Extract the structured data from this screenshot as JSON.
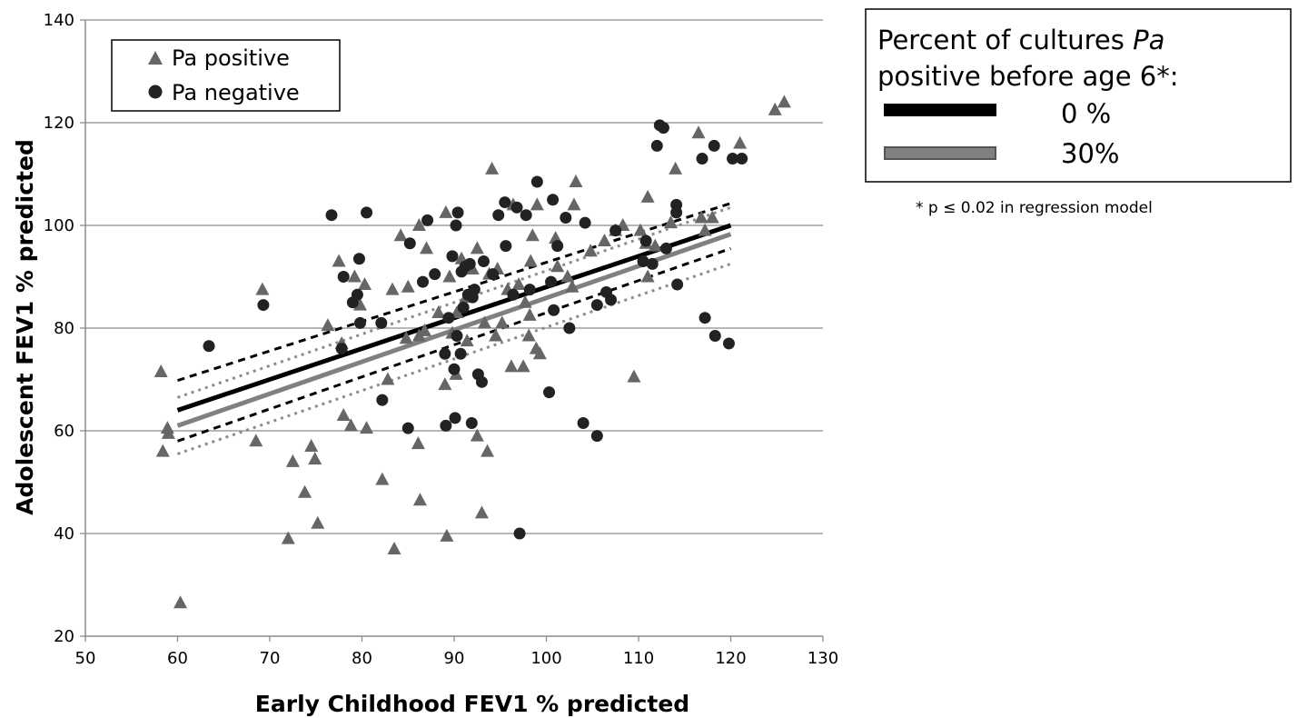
{
  "chart_data": {
    "type": "scatter",
    "xlabel": "Early Childhood FEV1 % predicted",
    "ylabel": "Adolescent FEV1 % predicted",
    "xlim": [
      50,
      130
    ],
    "ylim": [
      20,
      140
    ],
    "xticks": [
      50,
      60,
      70,
      80,
      90,
      100,
      110,
      120,
      130
    ],
    "yticks": [
      20,
      40,
      60,
      80,
      100,
      120,
      140
    ],
    "grid": "horizontal",
    "legend_placement": "top-left",
    "series": [
      {
        "name": "Pa positive",
        "marker": "triangle",
        "color": "#666666",
        "points": [
          [
            58.2,
            71.5
          ],
          [
            58.4,
            56
          ],
          [
            58.9,
            60.5
          ],
          [
            59,
            59.5
          ],
          [
            60.3,
            26.5
          ],
          [
            68.5,
            58
          ],
          [
            69.2,
            87.5
          ],
          [
            72,
            39
          ],
          [
            72.5,
            54
          ],
          [
            73.8,
            48
          ],
          [
            74.5,
            57
          ],
          [
            74.9,
            54.5
          ],
          [
            75.2,
            42
          ],
          [
            76.3,
            80.5
          ],
          [
            77.5,
            93
          ],
          [
            77.8,
            77
          ],
          [
            78,
            63
          ],
          [
            78.8,
            61
          ],
          [
            79.2,
            90
          ],
          [
            79.8,
            84.5
          ],
          [
            80.3,
            88.5
          ],
          [
            80.5,
            60.5
          ],
          [
            82.2,
            50.5
          ],
          [
            82.8,
            70
          ],
          [
            83.3,
            87.5
          ],
          [
            83.5,
            37
          ],
          [
            84.2,
            98
          ],
          [
            84.8,
            78
          ],
          [
            85,
            88
          ],
          [
            86.1,
            57.5
          ],
          [
            86.2,
            100
          ],
          [
            86.2,
            78.5
          ],
          [
            86.3,
            46.5
          ],
          [
            86.8,
            79.5
          ],
          [
            87,
            95.5
          ],
          [
            88.3,
            83
          ],
          [
            89,
            69
          ],
          [
            89.1,
            102.5
          ],
          [
            89.2,
            39.5
          ],
          [
            89.5,
            90
          ],
          [
            89.8,
            79
          ],
          [
            90.2,
            71
          ],
          [
            90.3,
            83
          ],
          [
            90.8,
            93.5
          ],
          [
            91.3,
            86
          ],
          [
            91.4,
            77.5
          ],
          [
            92,
            91.5
          ],
          [
            92.5,
            59
          ],
          [
            92.5,
            95.5
          ],
          [
            93,
            44
          ],
          [
            93.3,
            81
          ],
          [
            93.6,
            56
          ],
          [
            93.8,
            90.5
          ],
          [
            94.1,
            111
          ],
          [
            94.5,
            78.5
          ],
          [
            94.7,
            91.5
          ],
          [
            95.2,
            81
          ],
          [
            95.8,
            87.5
          ],
          [
            96.2,
            72.5
          ],
          [
            96.4,
            104
          ],
          [
            97,
            88.5
          ],
          [
            97.5,
            72.5
          ],
          [
            97.7,
            85
          ],
          [
            98.1,
            78.5
          ],
          [
            98.2,
            82.5
          ],
          [
            98.3,
            93
          ],
          [
            98.5,
            98
          ],
          [
            98.9,
            76
          ],
          [
            99,
            104
          ],
          [
            99.3,
            75
          ],
          [
            101,
            97.5
          ],
          [
            101.2,
            92
          ],
          [
            102.3,
            90
          ],
          [
            102.8,
            88
          ],
          [
            103,
            104
          ],
          [
            103.2,
            108.5
          ],
          [
            104.8,
            95
          ],
          [
            106.3,
            97
          ],
          [
            107.5,
            99
          ],
          [
            108.3,
            100
          ],
          [
            109.5,
            70.5
          ],
          [
            110.2,
            99
          ],
          [
            110.8,
            96.5
          ],
          [
            111,
            90
          ],
          [
            111,
            105.5
          ],
          [
            111.8,
            96
          ],
          [
            113.5,
            100.5
          ],
          [
            114,
            111
          ],
          [
            116.5,
            118
          ],
          [
            116.8,
            101.5
          ],
          [
            117.2,
            99
          ],
          [
            118,
            101.5
          ],
          [
            121,
            116
          ],
          [
            124.8,
            122.5
          ],
          [
            125.8,
            124
          ]
        ]
      },
      {
        "name": "Pa negative",
        "marker": "circle",
        "color": "#222222",
        "points": [
          [
            63.4,
            76.5
          ],
          [
            69.3,
            84.5
          ],
          [
            76.7,
            102
          ],
          [
            77.8,
            76
          ],
          [
            78,
            90
          ],
          [
            79,
            85
          ],
          [
            79.5,
            86.5
          ],
          [
            79.7,
            93.5
          ],
          [
            79.8,
            81
          ],
          [
            80.5,
            102.5
          ],
          [
            82.1,
            81
          ],
          [
            82.2,
            66
          ],
          [
            85,
            60.5
          ],
          [
            85.2,
            96.5
          ],
          [
            86.6,
            89
          ],
          [
            87.1,
            101
          ],
          [
            87.9,
            90.5
          ],
          [
            89,
            75
          ],
          [
            89.1,
            61
          ],
          [
            89.4,
            82
          ],
          [
            89.8,
            94
          ],
          [
            90,
            72
          ],
          [
            90.1,
            62.5
          ],
          [
            90.2,
            100
          ],
          [
            90.3,
            78.5
          ],
          [
            90.4,
            102.5
          ],
          [
            90.7,
            75
          ],
          [
            90.8,
            91
          ],
          [
            91,
            84
          ],
          [
            91.2,
            92
          ],
          [
            91.5,
            86.5
          ],
          [
            91.7,
            92.5
          ],
          [
            91.9,
            61.5
          ],
          [
            92,
            86
          ],
          [
            92.2,
            87.5
          ],
          [
            92.6,
            71
          ],
          [
            93,
            69.5
          ],
          [
            93.2,
            93
          ],
          [
            94.2,
            90.5
          ],
          [
            94.8,
            102
          ],
          [
            95.5,
            104.5
          ],
          [
            95.6,
            96
          ],
          [
            96.4,
            86.5
          ],
          [
            96.8,
            103.5
          ],
          [
            97.1,
            40
          ],
          [
            97.8,
            102
          ],
          [
            98.2,
            87.5
          ],
          [
            99,
            108.5
          ],
          [
            100.3,
            67.5
          ],
          [
            100.5,
            89
          ],
          [
            100.7,
            105
          ],
          [
            100.8,
            83.5
          ],
          [
            101.2,
            96
          ],
          [
            102.1,
            101.5
          ],
          [
            102.5,
            80
          ],
          [
            104,
            61.5
          ],
          [
            104.2,
            100.5
          ],
          [
            105.5,
            84.5
          ],
          [
            105.5,
            59
          ],
          [
            106.5,
            87
          ],
          [
            107.5,
            99
          ],
          [
            107,
            85.5
          ],
          [
            110.5,
            93
          ],
          [
            110.8,
            97
          ],
          [
            111.5,
            92.5
          ],
          [
            112,
            115.5
          ],
          [
            112.3,
            119.5
          ],
          [
            112.7,
            119
          ],
          [
            113,
            95.5
          ],
          [
            114.1,
            104
          ],
          [
            114.1,
            102.5
          ],
          [
            114.2,
            88.5
          ],
          [
            116.9,
            113
          ],
          [
            117.2,
            82
          ],
          [
            118.2,
            115.5
          ],
          [
            118.3,
            78.5
          ],
          [
            119.8,
            77
          ],
          [
            120.2,
            113
          ],
          [
            121.2,
            113
          ]
        ]
      }
    ],
    "regression_lines": [
      {
        "name": "0 %",
        "color": "#000000",
        "style": "solid",
        "x": [
          60,
          120
        ],
        "y": [
          64,
          100
        ],
        "ci_lower": [
          58,
          95.5
        ],
        "ci_upper": [
          69.8,
          104.3
        ]
      },
      {
        "name": "30%",
        "color": "#808080",
        "style": "solid",
        "x": [
          60,
          120
        ],
        "y": [
          61,
          98.3
        ],
        "ci_lower": [
          55.5,
          92.5
        ],
        "ci_upper": [
          66.5,
          103.5
        ]
      }
    ]
  },
  "legend": {
    "items": [
      {
        "label": "Pa positive",
        "marker": "triangle"
      },
      {
        "label": "Pa negative",
        "marker": "circle"
      }
    ]
  },
  "regression_legend": {
    "title_line1_prefix": "Percent of cultures ",
    "title_line1_italic": "Pa",
    "title_line2": "positive before age 6*:",
    "items": [
      {
        "label": "0 %",
        "color": "#000000"
      },
      {
        "label": "30%",
        "color": "#808080"
      }
    ]
  },
  "footnote": "* p ≤ 0.02 in regression model"
}
